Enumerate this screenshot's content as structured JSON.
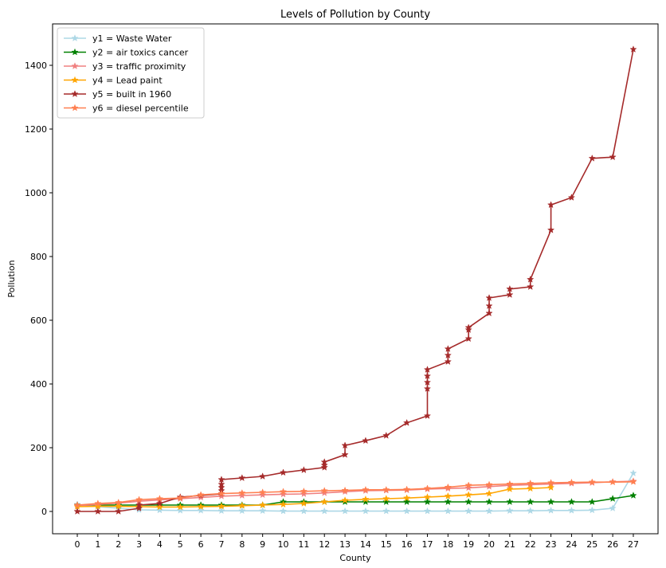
{
  "chart_data": {
    "type": "line",
    "title": "Levels of Pollution by County",
    "xlabel": "County",
    "ylabel": "Pollution",
    "xlim": [
      -1.2,
      28.2
    ],
    "ylim": [
      -70,
      1530
    ],
    "x_ticks": [
      0,
      1,
      2,
      3,
      4,
      5,
      6,
      7,
      8,
      9,
      10,
      11,
      12,
      13,
      14,
      15,
      16,
      17,
      18,
      19,
      20,
      21,
      22,
      23,
      24,
      25,
      26,
      27
    ],
    "y_ticks": [
      0,
      200,
      400,
      600,
      800,
      1000,
      1200,
      1400
    ],
    "legend_position": "top-left",
    "series": [
      {
        "name": "y1 = Waste Water",
        "color": "#add8e6",
        "points": [
          [
            0,
            22
          ],
          [
            1,
            15
          ],
          [
            2,
            10
          ],
          [
            3,
            5
          ],
          [
            4,
            4
          ],
          [
            5,
            3
          ],
          [
            6,
            3
          ],
          [
            7,
            2
          ],
          [
            8,
            2
          ],
          [
            9,
            2
          ],
          [
            10,
            1
          ],
          [
            11,
            1
          ],
          [
            12,
            1
          ],
          [
            13,
            1
          ],
          [
            14,
            1
          ],
          [
            15,
            1
          ],
          [
            16,
            1
          ],
          [
            17,
            1
          ],
          [
            18,
            1
          ],
          [
            19,
            1
          ],
          [
            20,
            1
          ],
          [
            21,
            2
          ],
          [
            22,
            2
          ],
          [
            23,
            3
          ],
          [
            24,
            3
          ],
          [
            25,
            4
          ],
          [
            26,
            10
          ],
          [
            27,
            120
          ]
        ]
      },
      {
        "name": "y2 = air toxics cancer",
        "color": "#008000",
        "points": [
          [
            0,
            20
          ],
          [
            1,
            20
          ],
          [
            2,
            20
          ],
          [
            3,
            20
          ],
          [
            4,
            20
          ],
          [
            5,
            20
          ],
          [
            6,
            20
          ],
          [
            7,
            20
          ],
          [
            8,
            20
          ],
          [
            9,
            20
          ],
          [
            10,
            30
          ],
          [
            11,
            30
          ],
          [
            12,
            30
          ],
          [
            13,
            30
          ],
          [
            14,
            30
          ],
          [
            15,
            30
          ],
          [
            16,
            30
          ],
          [
            17,
            30
          ],
          [
            18,
            30
          ],
          [
            19,
            30
          ],
          [
            20,
            30
          ],
          [
            21,
            30
          ],
          [
            22,
            30
          ],
          [
            23,
            30
          ],
          [
            24,
            30
          ],
          [
            25,
            30
          ],
          [
            26,
            40
          ],
          [
            27,
            50
          ]
        ]
      },
      {
        "name": "y3 = traffic proximity",
        "color": "#f08080",
        "points": [
          [
            0,
            18
          ],
          [
            1,
            22
          ],
          [
            2,
            26
          ],
          [
            3,
            32
          ],
          [
            4,
            36
          ],
          [
            5,
            40
          ],
          [
            6,
            44
          ],
          [
            7,
            48
          ],
          [
            8,
            50
          ],
          [
            9,
            52
          ],
          [
            10,
            54
          ],
          [
            11,
            55
          ],
          [
            12,
            58
          ],
          [
            13,
            62
          ],
          [
            14,
            65
          ],
          [
            15,
            66
          ],
          [
            16,
            67
          ],
          [
            17,
            70
          ],
          [
            18,
            72
          ],
          [
            19,
            74
          ],
          [
            20,
            78
          ],
          [
            21,
            82
          ],
          [
            22,
            84
          ],
          [
            23,
            86
          ],
          [
            24,
            88
          ],
          [
            25,
            90
          ],
          [
            26,
            93
          ],
          [
            27,
            95
          ]
        ]
      },
      {
        "name": "y4 = Lead paint",
        "color": "#ffa500",
        "points": [
          [
            0,
            15
          ],
          [
            1,
            16
          ],
          [
            2,
            16
          ],
          [
            3,
            15
          ],
          [
            4,
            14
          ],
          [
            5,
            14
          ],
          [
            6,
            15
          ],
          [
            7,
            16
          ],
          [
            8,
            18
          ],
          [
            9,
            20
          ],
          [
            10,
            22
          ],
          [
            11,
            25
          ],
          [
            12,
            30
          ],
          [
            13,
            35
          ],
          [
            14,
            38
          ],
          [
            15,
            40
          ],
          [
            16,
            42
          ],
          [
            17,
            45
          ],
          [
            18,
            48
          ],
          [
            19,
            52
          ],
          [
            20,
            56
          ],
          [
            21,
            70
          ],
          [
            22,
            72
          ],
          [
            23,
            75
          ]
        ]
      },
      {
        "name": "y5 = built in 1960",
        "color": "#a52a2a",
        "points": [
          [
            0,
            0
          ],
          [
            1,
            0
          ],
          [
            2,
            0
          ],
          [
            3,
            10
          ],
          [
            3,
            20
          ],
          [
            4,
            25
          ],
          [
            5,
            45
          ],
          [
            6,
            50
          ],
          [
            7,
            55
          ],
          [
            7,
            65
          ],
          [
            7,
            75
          ],
          [
            7,
            85
          ],
          [
            7,
            100
          ],
          [
            8,
            105
          ],
          [
            9,
            110
          ],
          [
            10,
            122
          ],
          [
            11,
            130
          ],
          [
            12,
            138
          ],
          [
            12,
            145
          ],
          [
            12,
            155
          ],
          [
            13,
            178
          ],
          [
            13,
            207
          ],
          [
            14,
            222
          ],
          [
            15,
            238
          ],
          [
            16,
            278
          ],
          [
            17,
            300
          ],
          [
            17,
            385
          ],
          [
            17,
            405
          ],
          [
            17,
            425
          ],
          [
            17,
            445
          ],
          [
            18,
            470
          ],
          [
            18,
            490
          ],
          [
            18,
            510
          ],
          [
            19,
            542
          ],
          [
            19,
            570
          ],
          [
            19,
            577
          ],
          [
            20,
            622
          ],
          [
            20,
            645
          ],
          [
            20,
            670
          ],
          [
            21,
            680
          ],
          [
            21,
            698
          ],
          [
            22,
            705
          ],
          [
            22,
            728
          ],
          [
            23,
            883
          ],
          [
            23,
            962
          ],
          [
            24,
            985
          ],
          [
            25,
            1108
          ],
          [
            26,
            1112
          ],
          [
            27,
            1450
          ]
        ]
      },
      {
        "name": "y6 = diesel percentile",
        "color": "#ff7f50",
        "points": [
          [
            0,
            20
          ],
          [
            1,
            25
          ],
          [
            2,
            28
          ],
          [
            3,
            37
          ],
          [
            4,
            40
          ],
          [
            5,
            42
          ],
          [
            6,
            52
          ],
          [
            7,
            56
          ],
          [
            8,
            58
          ],
          [
            9,
            60
          ],
          [
            10,
            62
          ],
          [
            11,
            63
          ],
          [
            12,
            65
          ],
          [
            13,
            66
          ],
          [
            14,
            68
          ],
          [
            15,
            68
          ],
          [
            16,
            69
          ],
          [
            17,
            72
          ],
          [
            18,
            76
          ],
          [
            19,
            82
          ],
          [
            20,
            84
          ],
          [
            21,
            86
          ],
          [
            22,
            88
          ],
          [
            23,
            90
          ],
          [
            24,
            91
          ],
          [
            25,
            92
          ],
          [
            26,
            92
          ],
          [
            27,
            93
          ]
        ]
      }
    ]
  }
}
